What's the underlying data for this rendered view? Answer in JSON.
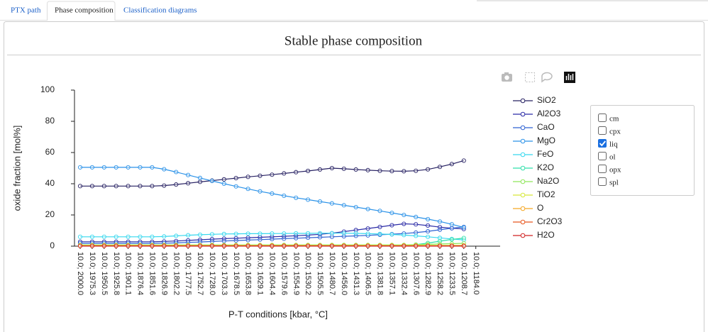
{
  "tabs": [
    {
      "label": "PTX path",
      "active": false
    },
    {
      "label": "Phase composition",
      "active": true
    },
    {
      "label": "Classification diagrams",
      "active": false
    }
  ],
  "chart_data": {
    "type": "line",
    "title": "Stable phase composition",
    "x_label": "P-T conditions [kbar, °C]",
    "y_label": "oxide fraction [mol%]",
    "categories": [
      "10.0; 2000.0",
      "10.0; 1975.3",
      "10.0; 1950.5",
      "10.0; 1925.8",
      "10.0; 1901.1",
      "10.0; 1876.4",
      "10.0; 1851.6",
      "10.0; 1826.9",
      "10.0; 1802.2",
      "10.0; 1777.5",
      "10.0; 1752.7",
      "10.0; 1728.0",
      "10.0; 1703.3",
      "10.0; 1678.5",
      "10.0; 1653.8",
      "10.0; 1629.1",
      "10.0; 1604.4",
      "10.0; 1579.6",
      "10.0; 1554.9",
      "10.0; 1530.2",
      "10.0; 1505.5",
      "10.0; 1480.7",
      "10.0; 1456.0",
      "10.0; 1431.3",
      "10.0; 1406.5",
      "10.0; 1381.8",
      "10.0; 1357.1",
      "10.0; 1332.4",
      "10.0; 1307.6",
      "10.0; 1282.9",
      "10.0; 1258.2",
      "10.0; 1233.5",
      "10.0; 1208.7",
      "10.0; 1184.0"
    ],
    "ylim": [
      0,
      100
    ],
    "yticks": [
      0,
      20,
      40,
      60,
      80,
      100
    ],
    "series": [
      {
        "name": "SiO2",
        "color": "#262062",
        "values": [
          38.5,
          38.5,
          38.5,
          38.5,
          38.5,
          38.5,
          38.5,
          38.8,
          39.5,
          40.3,
          41.2,
          42.0,
          42.8,
          43.6,
          44.4,
          45.1,
          45.8,
          46.6,
          47.4,
          48.2,
          49.1,
          50.0,
          49.6,
          49.1,
          48.7,
          48.3,
          48.1,
          48.0,
          48.3,
          49.2,
          50.8,
          52.6,
          54.8,
          null
        ]
      },
      {
        "name": "Al2O3",
        "color": "#2b2ba6",
        "values": [
          2.8,
          2.8,
          2.8,
          2.8,
          2.8,
          2.8,
          2.8,
          3.0,
          3.3,
          3.7,
          4.1,
          4.5,
          4.8,
          5.1,
          5.4,
          5.7,
          6.0,
          6.3,
          6.7,
          7.1,
          7.6,
          8.3,
          9.3,
          10.3,
          11.3,
          12.3,
          13.4,
          14.3,
          14.0,
          13.2,
          12.2,
          11.5,
          11.0,
          null
        ]
      },
      {
        "name": "CaO",
        "color": "#2f62d2",
        "values": [
          1.8,
          1.8,
          1.8,
          1.8,
          1.8,
          1.8,
          1.8,
          1.9,
          2.1,
          2.4,
          2.7,
          3.0,
          3.3,
          3.6,
          3.9,
          4.2,
          4.5,
          4.8,
          5.1,
          5.4,
          5.7,
          6.0,
          6.3,
          6.6,
          6.9,
          7.3,
          7.7,
          8.1,
          8.7,
          9.5,
          10.5,
          11.5,
          12.3,
          null
        ]
      },
      {
        "name": "MgO",
        "color": "#2b92e8",
        "values": [
          50.5,
          50.5,
          50.5,
          50.5,
          50.5,
          50.5,
          50.5,
          49.3,
          47.5,
          45.6,
          43.7,
          41.8,
          40.0,
          38.3,
          36.7,
          35.1,
          33.7,
          32.3,
          31.0,
          29.8,
          28.6,
          27.4,
          26.2,
          25.0,
          23.8,
          22.6,
          21.3,
          20.0,
          18.7,
          17.3,
          15.8,
          14.0,
          12.0,
          null
        ]
      },
      {
        "name": "FeO",
        "color": "#36d8ee",
        "values": [
          6.0,
          6.0,
          6.0,
          6.0,
          6.0,
          6.0,
          6.0,
          6.2,
          6.6,
          7.0,
          7.3,
          7.6,
          7.8,
          7.9,
          8.0,
          8.0,
          8.1,
          8.1,
          8.2,
          8.2,
          8.3,
          8.3,
          8.3,
          8.2,
          8.0,
          7.8,
          7.5,
          7.1,
          6.6,
          6.0,
          5.3,
          4.6,
          4.0,
          null
        ]
      },
      {
        "name": "K2O",
        "color": "#2fe0aa",
        "values": [
          0.4,
          0.4,
          0.4,
          0.4,
          0.4,
          0.4,
          0.4,
          0.4,
          0.4,
          0.4,
          0.4,
          0.4,
          0.4,
          0.4,
          0.4,
          0.4,
          0.4,
          0.4,
          0.4,
          0.4,
          0.4,
          0.4,
          0.4,
          0.4,
          0.4,
          0.4,
          0.4,
          0.4,
          1.0,
          2.0,
          3.2,
          4.3,
          5.2,
          null
        ]
      },
      {
        "name": "Na2O",
        "color": "#8fe65a",
        "values": [
          0.8,
          0.8,
          0.8,
          0.8,
          0.8,
          0.8,
          0.8,
          0.8,
          0.8,
          0.8,
          0.8,
          0.8,
          0.8,
          0.8,
          0.8,
          0.8,
          0.8,
          0.8,
          0.8,
          0.8,
          0.8,
          0.8,
          0.8,
          0.8,
          0.8,
          0.8,
          0.8,
          0.8,
          1.0,
          1.2,
          1.4,
          1.6,
          1.8,
          null
        ]
      },
      {
        "name": "TiO2",
        "color": "#d6e838",
        "values": [
          0.5,
          0.5,
          0.5,
          0.5,
          0.5,
          0.5,
          0.5,
          0.5,
          0.5,
          0.5,
          0.5,
          0.5,
          0.5,
          0.5,
          0.5,
          0.5,
          0.5,
          0.5,
          0.5,
          0.5,
          0.5,
          0.5,
          0.5,
          0.5,
          0.5,
          0.5,
          0.5,
          0.5,
          0.5,
          0.5,
          0.5,
          0.5,
          0.5,
          null
        ]
      },
      {
        "name": "O",
        "color": "#f5a623",
        "values": [
          0.3,
          0.3,
          0.3,
          0.3,
          0.3,
          0.3,
          0.3,
          0.3,
          0.3,
          0.3,
          0.3,
          0.3,
          0.3,
          0.3,
          0.3,
          0.3,
          0.3,
          0.3,
          0.3,
          0.3,
          0.3,
          0.3,
          0.3,
          0.3,
          0.3,
          0.3,
          0.3,
          0.3,
          0.3,
          0.3,
          0.3,
          0.3,
          0.3,
          null
        ]
      },
      {
        "name": "Cr2O3",
        "color": "#e8561e",
        "values": [
          0.2,
          0.2,
          0.2,
          0.2,
          0.2,
          0.2,
          0.2,
          0.2,
          0.2,
          0.2,
          0.2,
          0.2,
          0.2,
          0.2,
          0.2,
          0.2,
          0.2,
          0.2,
          0.2,
          0.2,
          0.2,
          0.2,
          0.2,
          0.2,
          0.2,
          0.2,
          0.2,
          0.2,
          0.2,
          0.2,
          0.2,
          0.2,
          0.2,
          null
        ]
      },
      {
        "name": "H2O",
        "color": "#d02222",
        "values": [
          0.1,
          0.1,
          0.1,
          0.1,
          0.1,
          0.1,
          0.1,
          0.1,
          0.1,
          0.1,
          0.1,
          0.1,
          0.1,
          0.1,
          0.1,
          0.1,
          0.1,
          0.1,
          0.1,
          0.1,
          0.1,
          0.1,
          0.1,
          0.1,
          0.1,
          0.1,
          0.1,
          0.1,
          0.1,
          0.1,
          0.1,
          0.1,
          0.1,
          null
        ]
      }
    ]
  },
  "phases": [
    {
      "name": "cm",
      "checked": false
    },
    {
      "name": "cpx",
      "checked": false
    },
    {
      "name": "liq",
      "checked": true
    },
    {
      "name": "ol",
      "checked": false
    },
    {
      "name": "opx",
      "checked": false
    },
    {
      "name": "spl",
      "checked": false
    }
  ]
}
